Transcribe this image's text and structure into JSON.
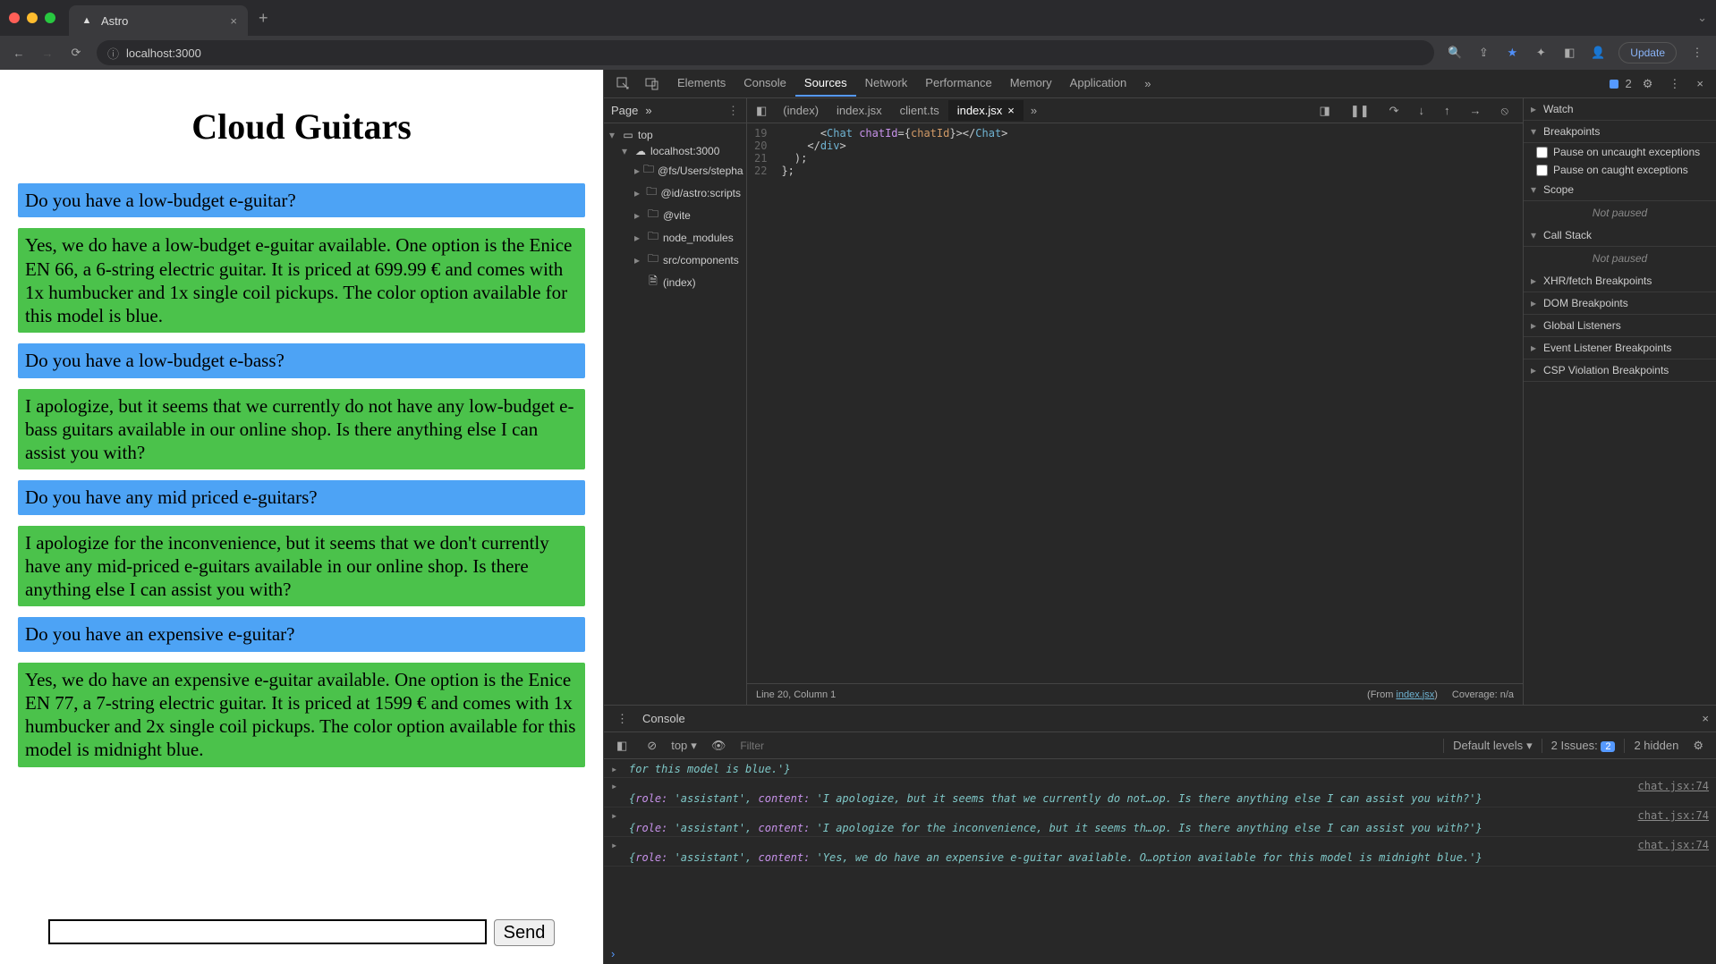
{
  "browser": {
    "tab_title": "Astro",
    "url": "localhost:3000",
    "update_label": "Update"
  },
  "page": {
    "title": "Cloud Guitars",
    "messages": [
      {
        "role": "user",
        "text": "Do you have a low-budget e-guitar?"
      },
      {
        "role": "assistant",
        "text": "Yes, we do have a low-budget e-guitar available. One option is the Enice EN 66, a 6-string electric guitar. It is priced at 699.99 € and comes with 1x humbucker and 1x single coil pickups. The color option available for this model is blue."
      },
      {
        "role": "user",
        "text": "Do you have a low-budget e-bass?"
      },
      {
        "role": "assistant",
        "text": "I apologize, but it seems that we currently do not have any low-budget e-bass guitars available in our online shop. Is there anything else I can assist you with?"
      },
      {
        "role": "user",
        "text": "Do you have any mid priced e-guitars?"
      },
      {
        "role": "assistant",
        "text": "I apologize for the inconvenience, but it seems that we don't currently have any mid-priced e-guitars available in our online shop. Is there anything else I can assist you with?"
      },
      {
        "role": "user",
        "text": "Do you have an expensive e-guitar?"
      },
      {
        "role": "assistant",
        "text": "Yes, we do have an expensive e-guitar available. One option is the Enice EN 77, a 7-string electric guitar. It is priced at 1599 € and comes with 1x humbucker and 2x single coil pickups. The color option available for this model is midnight blue."
      }
    ],
    "send_label": "Send",
    "input_value": ""
  },
  "devtools": {
    "tabs": [
      "Elements",
      "Console",
      "Sources",
      "Network",
      "Performance",
      "Memory",
      "Application"
    ],
    "active_tab": "Sources",
    "issues_count": "2",
    "sources": {
      "left_tab": "Page",
      "tree": {
        "top": "top",
        "host": "localhost:3000",
        "folders": [
          "@fs/Users/stepha",
          "@id/astro:scripts",
          "@vite",
          "node_modules",
          "src/components"
        ],
        "file": "(index)"
      },
      "open_tabs": [
        "(index)",
        "index.jsx",
        "client.ts",
        "index.jsx"
      ],
      "active_open_tab": 3,
      "code_lines": [
        {
          "n": "19",
          "html": "      <span class='tk-punct'>&lt;</span><span class='tk-tag'>Chat</span> <span class='tk-attr'>chatId</span><span class='tk-punct'>={</span><span class='tk-var'>chatId</span><span class='tk-punct'>}&gt;&lt;/</span><span class='tk-tag'>Chat</span><span class='tk-punct'>&gt;</span>"
        },
        {
          "n": "20",
          "html": "    <span class='tk-punct'>&lt;/</span><span class='tk-tag'>div</span><span class='tk-punct'>&gt;</span>"
        },
        {
          "n": "21",
          "html": "  <span class='tk-punct'>);</span>"
        },
        {
          "n": "22",
          "html": "<span class='tk-punct'>};</span>"
        }
      ],
      "status": {
        "cursor": "Line 20, Column 1",
        "from_label": "(From ",
        "from_file": "index.jsx",
        "from_close": ")",
        "coverage": "Coverage: n/a"
      },
      "right_panes": {
        "watch": "Watch",
        "breakpoints": "Breakpoints",
        "bp_uncaught": "Pause on uncaught exceptions",
        "bp_caught": "Pause on caught exceptions",
        "scope": "Scope",
        "not_paused": "Not paused",
        "callstack": "Call Stack",
        "xhr": "XHR/fetch Breakpoints",
        "dom": "DOM Breakpoints",
        "global": "Global Listeners",
        "evt": "Event Listener Breakpoints",
        "csp": "CSP Violation Breakpoints"
      }
    },
    "console": {
      "label": "Console",
      "context": "top",
      "filter_placeholder": "Filter",
      "levels": "Default levels",
      "issues_label": "2 Issues:",
      "issues_badge": "2",
      "hidden": "2 hidden",
      "rows": [
        {
          "src": "",
          "text": "for this model is blue.'}"
        },
        {
          "src": "chat.jsx:74",
          "text": "{role: 'assistant', content: 'I apologize, but it seems that we currently do not…op. Is there anything else I can assist you with?'}"
        },
        {
          "src": "chat.jsx:74",
          "text": "{role: 'assistant', content: 'I apologize for the inconvenience, but it seems th…op. Is there anything else I can assist you with?'}"
        },
        {
          "src": "chat.jsx:74",
          "text": "{role: 'assistant', content: 'Yes, we do have an expensive e-guitar available. O…option available for this model is midnight blue.'}"
        }
      ]
    }
  },
  "colors": {
    "user_msg": "#4da3f5",
    "assistant_msg": "#4bc24b",
    "devtools_bg": "#282828",
    "accent": "#5599ff"
  }
}
